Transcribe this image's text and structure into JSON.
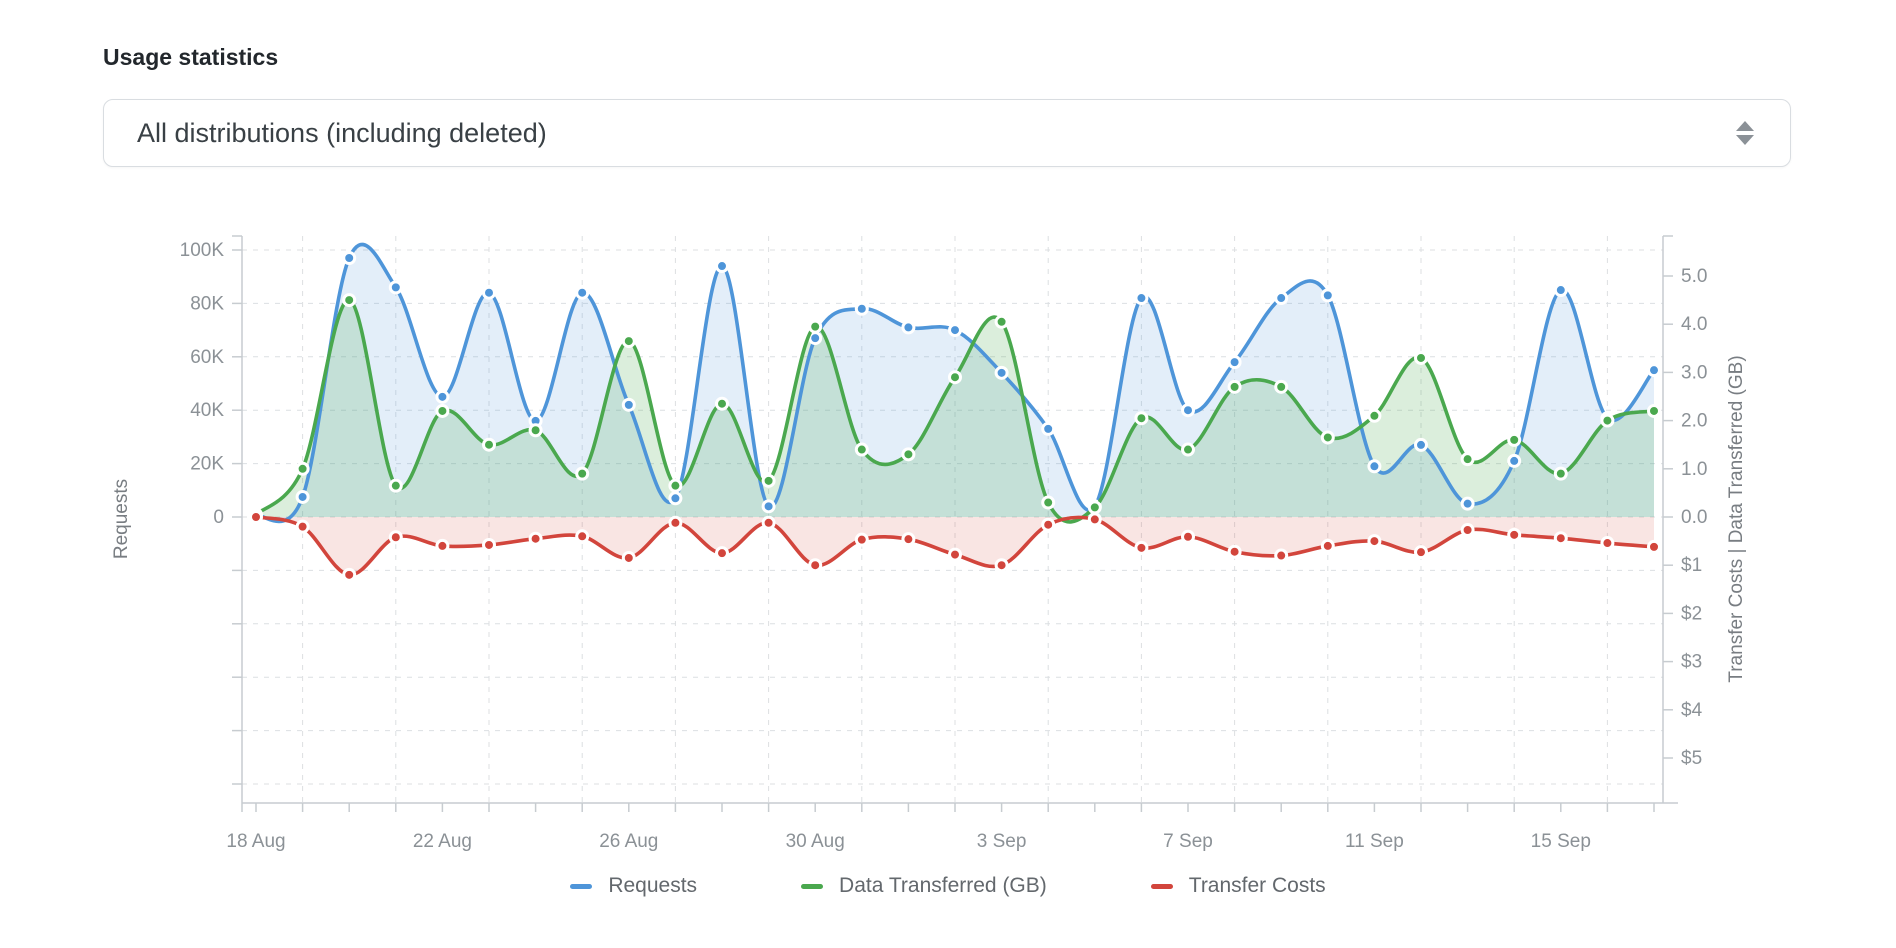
{
  "page": {
    "title": "Usage statistics"
  },
  "filter": {
    "selected": "All distributions (including deleted)"
  },
  "chart_data": {
    "type": "line",
    "title": "Usage statistics",
    "dates": [
      "18 Aug",
      "19 Aug",
      "20 Aug",
      "21 Aug",
      "22 Aug",
      "23 Aug",
      "24 Aug",
      "25 Aug",
      "26 Aug",
      "27 Aug",
      "28 Aug",
      "29 Aug",
      "30 Aug",
      "31 Aug",
      "1 Sep",
      "2 Sep",
      "3 Sep",
      "4 Sep",
      "5 Sep",
      "6 Sep",
      "7 Sep",
      "8 Sep",
      "9 Sep",
      "10 Sep",
      "11 Sep",
      "12 Sep",
      "13 Sep",
      "14 Sep",
      "15 Sep",
      "16 Sep",
      "17 Sep"
    ],
    "x_tick_indices": [
      0,
      4,
      8,
      12,
      16,
      20,
      24,
      28
    ],
    "x_tick_labels": [
      "18 Aug",
      "22 Aug",
      "26 Aug",
      "30 Aug",
      "3 Sep",
      "7 Sep",
      "11 Sep",
      "15 Sep"
    ],
    "series": [
      {
        "name": "Requests",
        "axis": "left",
        "color": "#4e95d9",
        "fill": "rgba(78,149,217,0.16)",
        "values": [
          500,
          7500,
          97000,
          86000,
          45000,
          84000,
          36000,
          84000,
          42000,
          7000,
          94000,
          4000,
          67000,
          78000,
          71000,
          70000,
          54000,
          33000,
          4000,
          82000,
          40000,
          58000,
          82000,
          83000,
          19000,
          27000,
          5000,
          21000,
          85000,
          37000,
          55000
        ]
      },
      {
        "name": "Data Transferred (GB)",
        "axis": "right",
        "color": "#4aa84e",
        "fill": "rgba(74,168,78,0.20)",
        "values": [
          0.05,
          1.0,
          4.5,
          0.65,
          2.2,
          1.5,
          1.8,
          0.9,
          3.65,
          0.65,
          2.35,
          0.75,
          3.95,
          1.4,
          1.3,
          2.9,
          4.05,
          0.3,
          0.2,
          2.05,
          1.4,
          2.7,
          2.7,
          1.65,
          2.1,
          3.3,
          1.2,
          1.6,
          0.9,
          2.0,
          2.2
        ]
      },
      {
        "name": "Transfer Costs",
        "axis": "right-down",
        "color": "#d2453c",
        "fill": "rgba(210,69,60,0.14)",
        "values": [
          0.0,
          0.2,
          1.2,
          0.42,
          0.6,
          0.58,
          0.45,
          0.4,
          0.85,
          0.12,
          0.75,
          0.12,
          1.0,
          0.47,
          0.46,
          0.78,
          1.0,
          0.16,
          0.05,
          0.64,
          0.41,
          0.72,
          0.8,
          0.6,
          0.5,
          0.73,
          0.27,
          0.37,
          0.44,
          0.54,
          0.62
        ]
      }
    ],
    "left_axis": {
      "label": "Requests",
      "tick_labels": [
        "100K",
        "80K",
        "60K",
        "40K",
        "20K",
        "0"
      ],
      "max": 100000,
      "grid": true
    },
    "right_axis": {
      "label": "Transfer Costs | Data Transferred (GB)",
      "gb_tick_labels": [
        "5.0",
        "4.0",
        "3.0",
        "2.0",
        "1.0",
        "0.0"
      ],
      "cost_tick_labels": [
        "$1",
        "$2",
        "$3",
        "$4",
        "$5"
      ],
      "max_gb": 5,
      "max_cost": 5
    },
    "legend_position": "bottom",
    "legend": [
      "Requests",
      "Data Transferred (GB)",
      "Transfer Costs"
    ]
  },
  "theme": {
    "grid_color": "#dcdfe2",
    "axis_color": "#c7ccd0",
    "tick_text_color": "#8b9196",
    "axis_title_color": "#787d82"
  }
}
